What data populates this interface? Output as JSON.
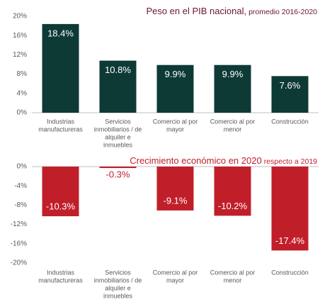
{
  "chart_data": [
    {
      "type": "bar",
      "title": "Peso en el PIB nacional,",
      "subtitle": "promedio 2016-2020",
      "categories": [
        [
          "Industrias",
          "manufactureras"
        ],
        [
          "Servicios",
          "inmobiliarios / de",
          "alquiler e",
          "inmuebles"
        ],
        [
          "Comercio al por",
          "mayor"
        ],
        [
          "Comercio al por",
          "menor"
        ],
        [
          "Construcción"
        ]
      ],
      "values": [
        18.4,
        10.8,
        9.9,
        9.9,
        7.6
      ],
      "value_labels": [
        "18.4%",
        "10.8%",
        "9.9%",
        "9.9%",
        "7.6%"
      ],
      "color": "#0e3a35",
      "title_color": "#6a1538",
      "ylim": [
        0,
        20
      ],
      "yticks": [
        {
          "value": 0,
          "label": "0%"
        },
        {
          "value": 4,
          "label": "4%"
        },
        {
          "value": 8,
          "label": "8%"
        },
        {
          "value": 12,
          "label": "12%"
        },
        {
          "value": 16,
          "label": "16%"
        },
        {
          "value": 20,
          "label": "20%"
        }
      ]
    },
    {
      "type": "bar",
      "title": "Crecimiento económico en 2020",
      "subtitle": "respecto a 2019",
      "categories": [
        [
          "Industrias",
          "manufactureras"
        ],
        [
          "Servicios",
          "inmobiliarios / de",
          "alquiler e",
          "inmuebles"
        ],
        [
          "Comercio al por",
          "mayor"
        ],
        [
          "Comercio al por",
          "menor"
        ],
        [
          "Construcción"
        ]
      ],
      "values": [
        -10.3,
        -0.3,
        -9.1,
        -10.2,
        -17.4
      ],
      "value_labels": [
        "-10.3%",
        "-0.3%",
        "-9.1%",
        "-10.2%",
        "-17.4%"
      ],
      "color": "#c01f2a",
      "title_color": "#c01f2a",
      "ylim": [
        -20,
        0
      ],
      "yticks": [
        {
          "value": 0,
          "label": "0%"
        },
        {
          "value": -4,
          "label": "-4%"
        },
        {
          "value": -8,
          "label": "-8%"
        },
        {
          "value": -12,
          "label": "-12%"
        },
        {
          "value": -16,
          "label": "-16%"
        },
        {
          "value": -20,
          "label": "-20%"
        }
      ]
    }
  ]
}
